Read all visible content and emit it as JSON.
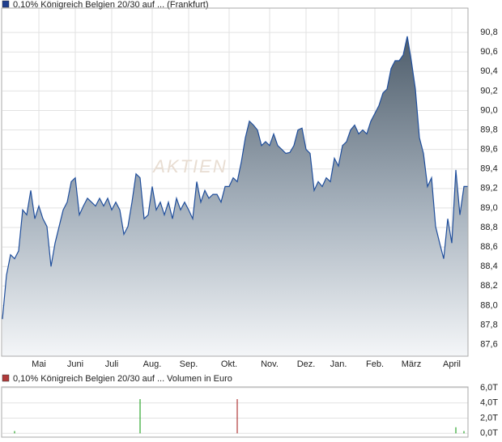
{
  "chart_data": [
    {
      "type": "area",
      "title": "0,10% Königreich Belgien  20/30 auf ... (Frankfurt)",
      "color": "#1f4e9c",
      "legend_color": "#1f3f8f",
      "watermark": "AKTIEN",
      "grid": true,
      "categories": [
        null,
        null,
        null,
        null,
        null,
        null,
        null,
        null,
        null,
        "Mai",
        null,
        null,
        null,
        null,
        null,
        null,
        null,
        null,
        "Juni",
        null,
        null,
        null,
        null,
        null,
        null,
        null,
        null,
        "Juli",
        null,
        null,
        null,
        null,
        null,
        null,
        null,
        null,
        null,
        "Aug.",
        null,
        null,
        null,
        null,
        null,
        null,
        null,
        null,
        "Sep.",
        null,
        null,
        null,
        null,
        null,
        null,
        null,
        null,
        null,
        "Okt.",
        null,
        null,
        null,
        null,
        null,
        null,
        null,
        null,
        null,
        "Nov.",
        null,
        null,
        null,
        null,
        null,
        null,
        null,
        null,
        "Dez.",
        null,
        null,
        null,
        null,
        null,
        null,
        null,
        "Jan.",
        null,
        null,
        null,
        null,
        null,
        null,
        null,
        null,
        "Feb.",
        null,
        null,
        null,
        null,
        null,
        null,
        null,
        null,
        "März",
        null,
        null,
        null,
        null,
        null,
        null,
        null,
        null,
        null,
        "April",
        null,
        null,
        null,
        null
      ],
      "values": [
        87.86,
        88.31,
        88.52,
        88.48,
        88.56,
        88.98,
        88.93,
        89.18,
        88.89,
        89.02,
        88.89,
        88.81,
        88.4,
        88.64,
        88.81,
        88.98,
        89.06,
        89.27,
        89.31,
        88.93,
        89.02,
        89.1,
        89.06,
        89.02,
        89.1,
        89.02,
        89.1,
        88.98,
        89.06,
        88.98,
        88.73,
        88.81,
        89.06,
        89.35,
        89.31,
        88.89,
        88.93,
        89.22,
        88.98,
        89.06,
        88.93,
        89.06,
        88.89,
        89.1,
        88.98,
        89.06,
        88.98,
        88.89,
        89.27,
        89.06,
        89.18,
        89.1,
        89.14,
        89.14,
        89.06,
        89.22,
        89.22,
        89.31,
        89.27,
        89.47,
        89.72,
        89.89,
        89.85,
        89.8,
        89.64,
        89.68,
        89.64,
        89.76,
        89.64,
        89.6,
        89.56,
        89.57,
        89.64,
        89.8,
        89.82,
        89.6,
        89.56,
        89.18,
        89.27,
        89.22,
        89.31,
        89.27,
        89.51,
        89.43,
        89.64,
        89.68,
        89.8,
        89.85,
        89.76,
        89.8,
        89.76,
        89.89,
        89.97,
        90.05,
        90.18,
        90.22,
        90.43,
        90.51,
        90.51,
        90.57,
        90.76,
        90.51,
        90.22,
        89.72,
        89.56,
        89.22,
        89.31,
        88.81,
        88.64,
        88.48,
        88.89,
        88.64,
        89.39,
        88.93,
        89.22,
        89.22
      ],
      "ylim": [
        87.48,
        91.05
      ],
      "yticks": [
        {
          "value": 87.6,
          "label": "87,6"
        },
        {
          "value": 87.8,
          "label": "87,8"
        },
        {
          "value": 88.0,
          "label": "88,0"
        },
        {
          "value": 88.2,
          "label": "88,2"
        },
        {
          "value": 88.4,
          "label": "88,4"
        },
        {
          "value": 88.6,
          "label": "88,6"
        },
        {
          "value": 88.8,
          "label": "88,8"
        },
        {
          "value": 89.0,
          "label": "89,0"
        },
        {
          "value": 89.2,
          "label": "89,2"
        },
        {
          "value": 89.4,
          "label": "89,4"
        },
        {
          "value": 89.6,
          "label": "89,6"
        },
        {
          "value": 89.8,
          "label": "89,8"
        },
        {
          "value": 90.0,
          "label": "90,0"
        },
        {
          "value": 90.2,
          "label": "90,2"
        },
        {
          "value": 90.4,
          "label": "90,4"
        },
        {
          "value": 90.6,
          "label": "90,6"
        },
        {
          "value": 90.8,
          "label": "90,8"
        }
      ]
    },
    {
      "type": "bar",
      "title": "0,10% Königreich Belgien  20/30 auf ... Volumen in Euro",
      "legend_color": "#b03a3a",
      "grid": true,
      "series": [
        {
          "color": "#2ea62e",
          "values": [
            null,
            null,
            null,
            0.3,
            null,
            null,
            null,
            null,
            null,
            null,
            null,
            null,
            null,
            null,
            null,
            null,
            null,
            null,
            null,
            null,
            null,
            null,
            null,
            null,
            null,
            null,
            null,
            null,
            null,
            null,
            null,
            null,
            null,
            null,
            4.5,
            null,
            null,
            null,
            null,
            null,
            null,
            null,
            null,
            null,
            null,
            null,
            null,
            null,
            null,
            null,
            null,
            null,
            null,
            null,
            null,
            null,
            null,
            null,
            null,
            null,
            null,
            null,
            null,
            null,
            null,
            null,
            null,
            null,
            null,
            null,
            null,
            null,
            null,
            null,
            null,
            null,
            null,
            null,
            null,
            null,
            null,
            null,
            null,
            null,
            null,
            null,
            null,
            null,
            null,
            null,
            null,
            null,
            null,
            null,
            null,
            null,
            null,
            null,
            null,
            null,
            null,
            null,
            null,
            null,
            null,
            null,
            null,
            null,
            null,
            null,
            null,
            null,
            0.8,
            null,
            0.3,
            null
          ]
        },
        {
          "color": "#b03a3a",
          "values": [
            null,
            null,
            null,
            null,
            null,
            null,
            null,
            null,
            null,
            null,
            null,
            null,
            null,
            null,
            null,
            null,
            null,
            null,
            null,
            null,
            null,
            null,
            null,
            null,
            null,
            null,
            null,
            null,
            null,
            null,
            null,
            null,
            null,
            null,
            null,
            null,
            null,
            null,
            null,
            null,
            null,
            null,
            null,
            null,
            null,
            null,
            null,
            null,
            null,
            null,
            null,
            null,
            null,
            null,
            null,
            null,
            null,
            null,
            4.5,
            null,
            null,
            null,
            null,
            null,
            null,
            null,
            null,
            null,
            null,
            null,
            null,
            null,
            null,
            null,
            null,
            null,
            null,
            null,
            null,
            null,
            null,
            null,
            null,
            null,
            null,
            null,
            null,
            null,
            null,
            null,
            null,
            null,
            null,
            null,
            null,
            null,
            null,
            null,
            null,
            null,
            null,
            null,
            null,
            null,
            null,
            null,
            null,
            null,
            null,
            null,
            null,
            null,
            null,
            null,
            null,
            null
          ]
        }
      ],
      "ylim": [
        -0.5,
        6.1
      ],
      "yticks": [
        {
          "value": 0,
          "label": "0,0T"
        },
        {
          "value": 2,
          "label": "2,0T"
        },
        {
          "value": 4,
          "label": "4,0T"
        },
        {
          "value": 6,
          "label": "6,0T"
        }
      ]
    }
  ]
}
